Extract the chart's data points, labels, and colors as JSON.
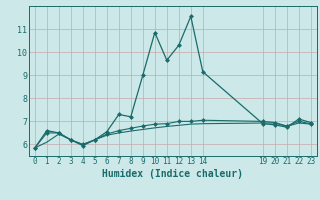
{
  "xlabel": "Humidex (Indice chaleur)",
  "bg_color": "#cde8e8",
  "line_color": "#1a6b6b",
  "grid_color": "#c8a8a8",
  "x_values": [
    0,
    1,
    2,
    3,
    4,
    5,
    6,
    7,
    8,
    9,
    10,
    11,
    12,
    13,
    14,
    19,
    20,
    21,
    22,
    23
  ],
  "line1_y": [
    5.85,
    6.6,
    6.5,
    6.2,
    5.95,
    6.2,
    6.55,
    7.3,
    7.2,
    9.0,
    10.85,
    9.65,
    10.3,
    11.55,
    9.15,
    6.9,
    6.85,
    6.75,
    7.1,
    6.95
  ],
  "line2_y": [
    5.85,
    6.5,
    6.5,
    6.2,
    6.0,
    6.2,
    6.45,
    6.6,
    6.7,
    6.8,
    6.88,
    6.9,
    7.0,
    7.0,
    7.05,
    7.0,
    6.95,
    6.8,
    7.0,
    6.9
  ],
  "line3_y": [
    5.85,
    6.1,
    6.45,
    6.2,
    6.0,
    6.2,
    6.4,
    6.5,
    6.58,
    6.65,
    6.72,
    6.78,
    6.83,
    6.88,
    6.9,
    6.93,
    6.93,
    6.78,
    6.93,
    6.88
  ],
  "ylim": [
    5.5,
    12.0
  ],
  "yticks": [
    6,
    7,
    8,
    9,
    10,
    11
  ],
  "xticks": [
    0,
    1,
    2,
    3,
    4,
    5,
    6,
    7,
    8,
    9,
    10,
    11,
    12,
    13,
    14,
    19,
    20,
    21,
    22,
    23
  ],
  "xlim": [
    -0.5,
    23.5
  ],
  "markersize": 2.5
}
